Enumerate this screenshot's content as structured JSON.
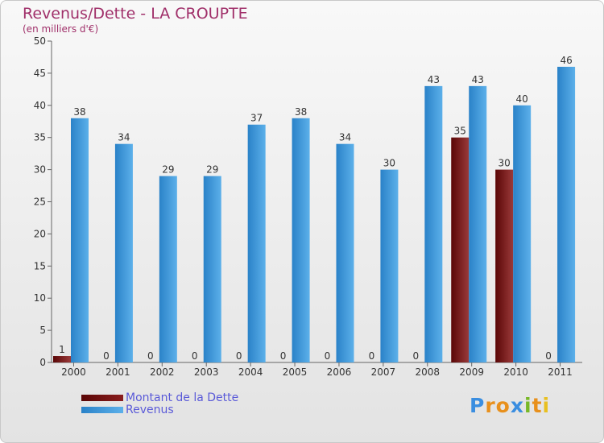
{
  "title": "Revenus/Dette - LA CROUPTE",
  "subtitle": "(en milliers d'€)",
  "colors": {
    "title": "#a0306a",
    "dette_dark": "#5a0606",
    "dette_light": "#9a3a3a",
    "revenus_dark": "#2a82c8",
    "revenus_light": "#5cb0ea",
    "axis": "#666666",
    "legend_text": "#5a5ad8"
  },
  "chart_data": {
    "type": "bar",
    "title": "Revenus/Dette - LA CROUPTE",
    "subtitle": "(en milliers d'€)",
    "xlabel": "",
    "ylabel": "",
    "categories": [
      "2000",
      "2001",
      "2002",
      "2003",
      "2004",
      "2005",
      "2006",
      "2007",
      "2008",
      "2009",
      "2010",
      "2011"
    ],
    "series": [
      {
        "name": "Montant de la Dette",
        "values": [
          1,
          0,
          0,
          0,
          0,
          0,
          0,
          0,
          0,
          35,
          30,
          0
        ]
      },
      {
        "name": "Revenus",
        "values": [
          38,
          34,
          29,
          29,
          37,
          38,
          34,
          30,
          43,
          43,
          40,
          46
        ]
      }
    ],
    "ylim": [
      0,
      50
    ],
    "yticks": [
      0,
      5,
      10,
      15,
      20,
      25,
      30,
      35,
      40,
      45,
      50
    ],
    "grid": false,
    "legend_position": "bottom-left"
  },
  "legend": {
    "items": [
      {
        "label": "Montant de la Dette",
        "color": "#6e0c0c"
      },
      {
        "label": "Revenus",
        "color": "#4aa3e6"
      }
    ]
  },
  "logo": {
    "letters": [
      "P",
      "r",
      "o",
      "x",
      "i",
      "t",
      "i"
    ],
    "colors": [
      "#3a8ee0",
      "#e8901c",
      "#e8901c",
      "#3a8ee0",
      "#78b828",
      "#e8901c",
      "#e8c020"
    ]
  }
}
